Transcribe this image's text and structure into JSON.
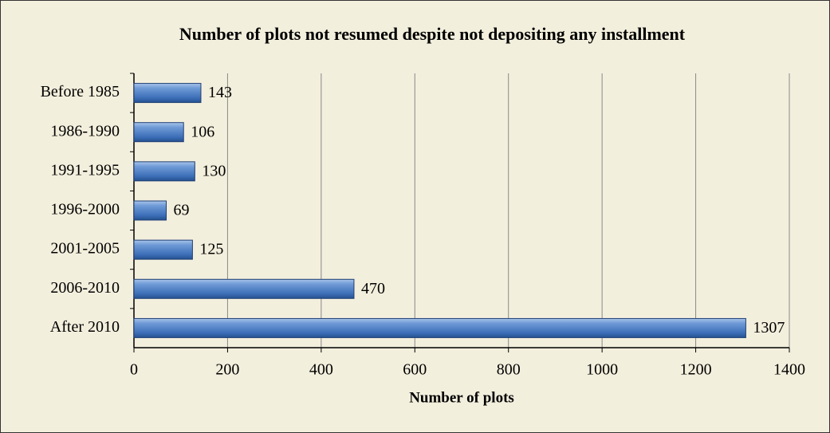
{
  "chart_data": {
    "type": "bar",
    "orientation": "horizontal",
    "title": "Number of plots not resumed despite not depositing any installment",
    "x_label": "Number of plots",
    "categories": [
      "Before 1985",
      "1986-1990",
      "1991-1995",
      "1996-2000",
      "2001-2005",
      "2006-2010",
      "After 2010"
    ],
    "values": [
      143,
      106,
      130,
      69,
      125,
      470,
      1307
    ],
    "color": "#4f81bd",
    "xlim": [
      0,
      1400
    ],
    "xticks": [
      0,
      200,
      400,
      600,
      800,
      1000,
      1200,
      1400
    ],
    "grid": true
  }
}
